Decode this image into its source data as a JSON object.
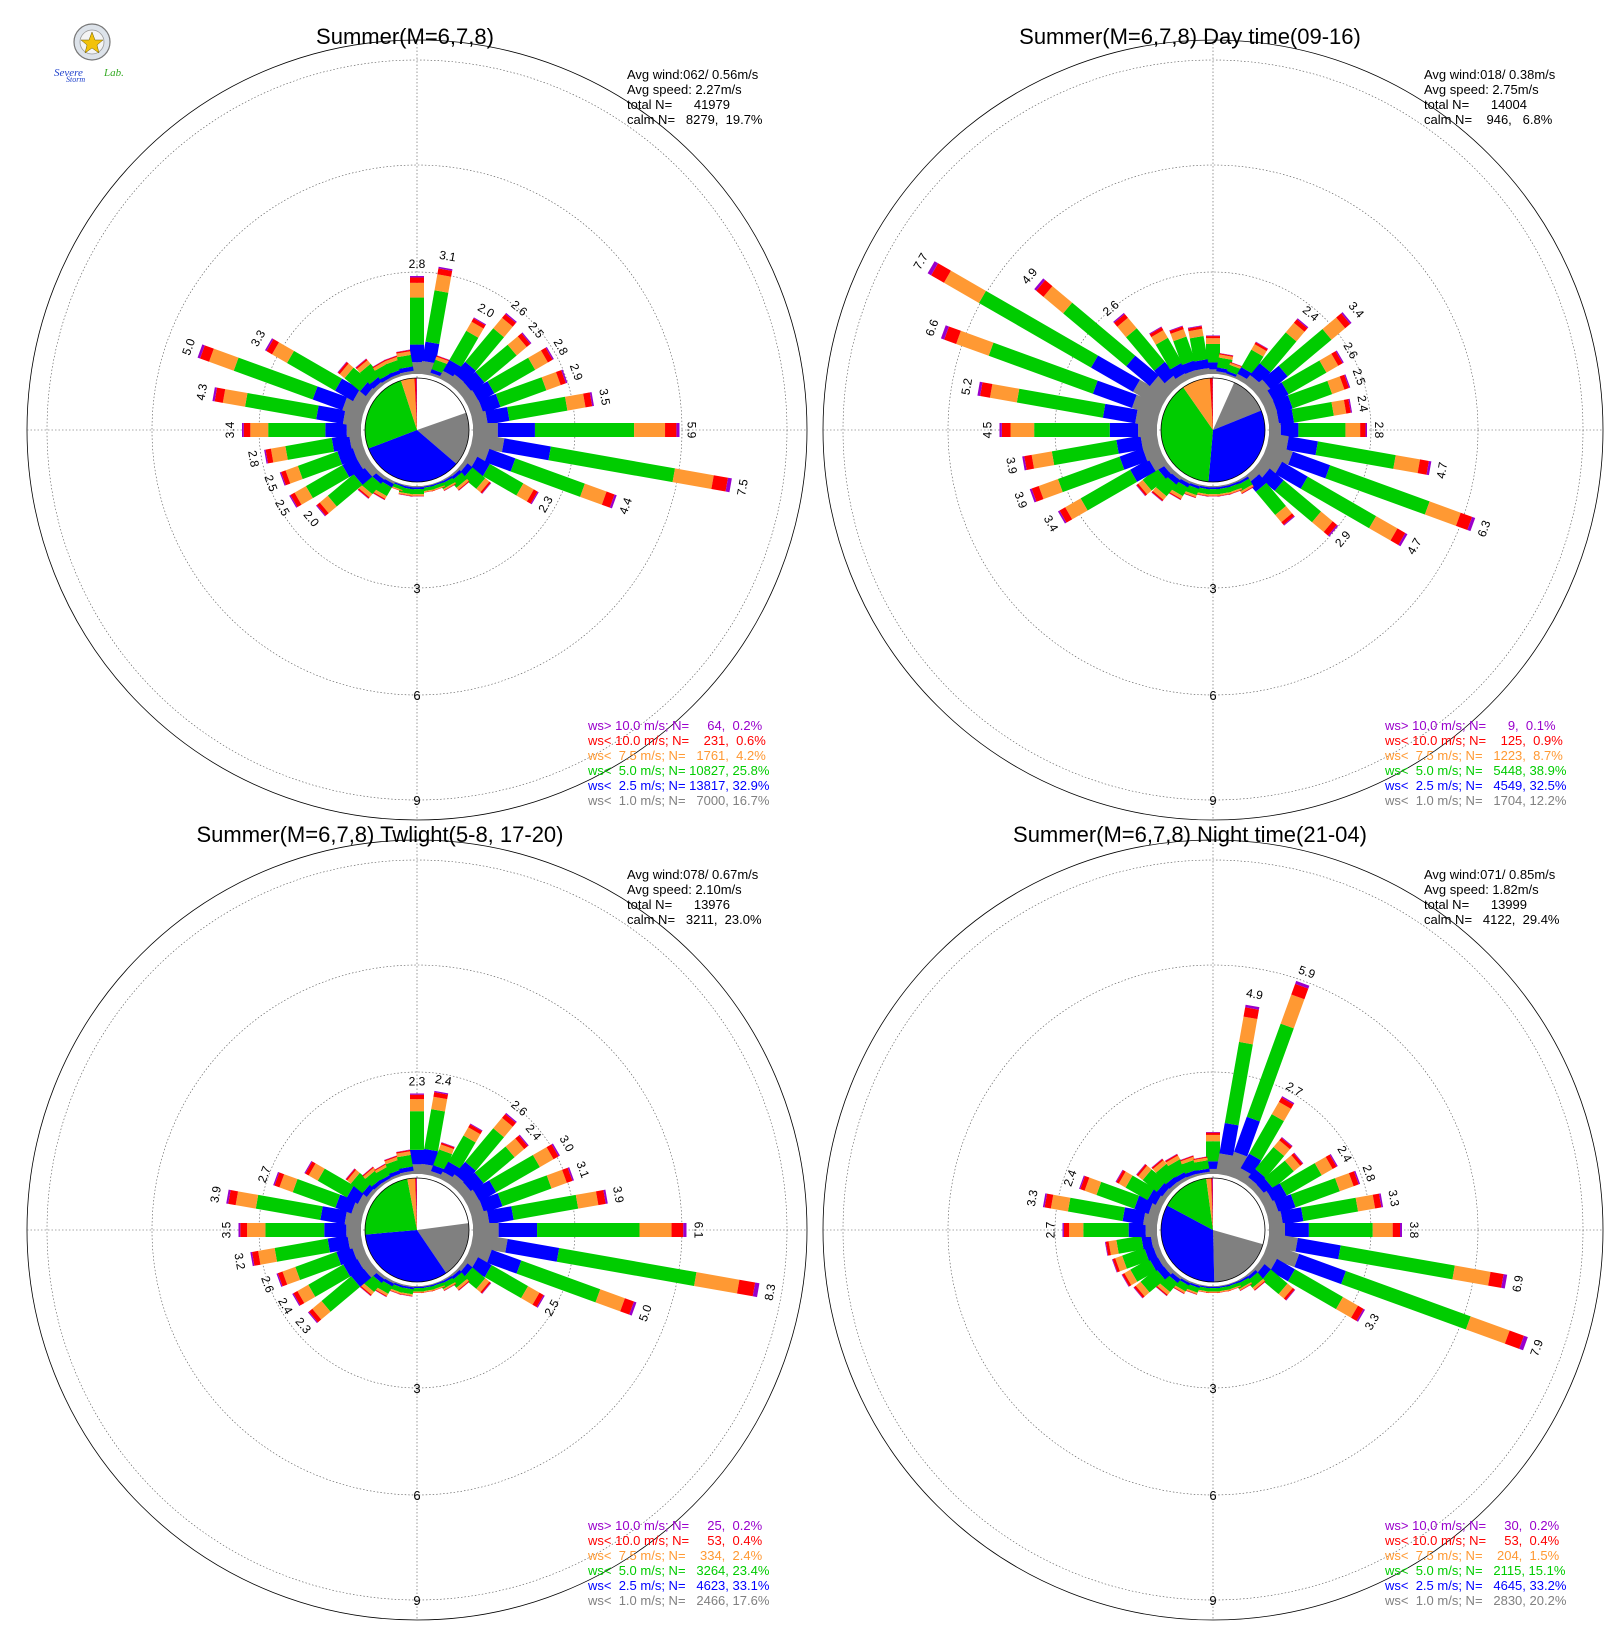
{
  "logo": {
    "text_severe": "Severe",
    "text_storm": "Storm",
    "text_lab": "Lab."
  },
  "colors": {
    "ws_gt_10": "#9900cc",
    "ws_lt_10": "#ff0000",
    "ws_lt_7_5": "#ff9933",
    "ws_lt_5": "#00cc00",
    "ws_lt_2_5": "#0000ff",
    "ws_lt_1": "#808080",
    "calm": "#ffffff"
  },
  "chart_data": [
    {
      "type": "windrose",
      "title": "Summer(M=6,7,8)",
      "stats": [
        "Avg wind:062/ 0.56m/s",
        "Avg speed: 2.27m/s",
        "total N=      41979",
        "calm N=   8279,  19.7%"
      ],
      "ring_labels": [
        "3",
        "6",
        "9"
      ],
      "legend": [
        {
          "text": "ws> 10.0 m/s; N=     64,  0.2%",
          "color": "#9900cc"
        },
        {
          "text": "ws< 10.0 m/s; N=    231,  0.6%",
          "color": "#ff0000"
        },
        {
          "text": "ws<  7.5 m/s; N=   1761,  4.2%",
          "color": "#ff9933"
        },
        {
          "text": "ws<  5.0 m/s; N= 10827, 25.8%",
          "color": "#00cc00"
        },
        {
          "text": "ws<  2.5 m/s; N= 13817, 32.9%",
          "color": "#0000ff"
        },
        {
          "text": "ws<  1.0 m/s; N=   7000, 16.7%",
          "color": "#808080"
        }
      ],
      "pie": [
        16.7,
        32.9,
        25.8,
        4.2,
        0.6,
        0.2
      ],
      "totals": [
        2.8,
        3.1,
        0.6,
        2.0,
        2.6,
        2.5,
        2.8,
        2.9,
        3.5,
        5.9,
        7.5,
        4.4,
        2.3,
        1.0,
        0.5,
        0.3,
        0.2,
        0.2,
        0.3,
        0.3,
        0.2,
        0.6,
        0.8,
        2.0,
        2.5,
        2.5,
        2.8,
        3.4,
        4.3,
        5.0,
        3.3,
        1.2,
        0.9,
        0.6,
        0.6,
        0.7
      ],
      "labeled": [
        0,
        1,
        3,
        4,
        5,
        6,
        7,
        8,
        9,
        10,
        11,
        12,
        23,
        24,
        25,
        26,
        27,
        28,
        29,
        30
      ]
    },
    {
      "type": "windrose",
      "title": "Summer(M=6,7,8) Day time(09-16)",
      "stats": [
        "Avg wind:018/ 0.38m/s",
        "Avg speed: 2.75m/s",
        "total N=      14004",
        "calm N=    946,   6.8%"
      ],
      "ring_labels": [
        "3",
        "6",
        "9"
      ],
      "legend": [
        {
          "text": "ws> 10.0 m/s; N=      9,  0.1%",
          "color": "#9900cc"
        },
        {
          "text": "ws< 10.0 m/s; N=    125,  0.9%",
          "color": "#ff0000"
        },
        {
          "text": "ws<  7.5 m/s; N=   1223,  8.7%",
          "color": "#ff9933"
        },
        {
          "text": "ws<  5.0 m/s; N=   5448, 38.9%",
          "color": "#00cc00"
        },
        {
          "text": "ws<  2.5 m/s; N=   4549, 32.5%",
          "color": "#0000ff"
        },
        {
          "text": "ws<  1.0 m/s; N=   1704, 12.2%",
          "color": "#808080"
        }
      ],
      "pie": [
        12.2,
        32.5,
        38.9,
        8.7,
        0.9,
        0.1
      ],
      "totals": [
        1.1,
        0.6,
        0.4,
        1.2,
        2.4,
        3.4,
        2.6,
        2.5,
        2.4,
        2.8,
        4.7,
        6.3,
        4.7,
        2.9,
        1.8,
        0.4,
        0.3,
        0.3,
        0.3,
        0.3,
        0.4,
        0.6,
        0.9,
        1.1,
        3.4,
        3.9,
        3.9,
        4.5,
        5.2,
        6.6,
        7.7,
        4.9,
        2.6,
        1.7,
        1.5,
        1.4
      ],
      "labeled": [
        4,
        5,
        6,
        7,
        8,
        9,
        10,
        11,
        12,
        13,
        24,
        25,
        26,
        27,
        28,
        29,
        30,
        31,
        32
      ]
    },
    {
      "type": "windrose",
      "title": "Summer(M=6,7,8) Twlight(5-8, 17-20)",
      "stats": [
        "Avg wind:078/ 0.67m/s",
        "Avg speed: 2.10m/s",
        "total N=      13976",
        "calm N=   3211,  23.0%"
      ],
      "ring_labels": [
        "3",
        "6",
        "9"
      ],
      "legend": [
        {
          "text": "ws> 10.0 m/s; N=     25,  0.2%",
          "color": "#9900cc"
        },
        {
          "text": "ws< 10.0 m/s; N=     53,  0.4%",
          "color": "#ff0000"
        },
        {
          "text": "ws<  7.5 m/s; N=    334,  2.4%",
          "color": "#ff9933"
        },
        {
          "text": "ws<  5.0 m/s; N=   3264, 23.4%",
          "color": "#00cc00"
        },
        {
          "text": "ws<  2.5 m/s; N=   4623, 33.1%",
          "color": "#0000ff"
        },
        {
          "text": "ws<  1.0 m/s; N=   2466, 17.6%",
          "color": "#808080"
        }
      ],
      "pie": [
        17.6,
        33.1,
        23.4,
        2.4,
        0.4,
        0.2
      ],
      "totals": [
        2.3,
        2.4,
        1.0,
        1.8,
        2.6,
        2.4,
        3.0,
        3.1,
        3.9,
        6.1,
        8.3,
        5.0,
        2.5,
        1.0,
        0.5,
        0.3,
        0.2,
        0.2,
        0.2,
        0.3,
        0.3,
        0.5,
        0.7,
        2.3,
        2.4,
        2.6,
        3.2,
        3.5,
        3.9,
        2.7,
        2.0,
        0.9,
        0.6,
        0.5,
        0.6,
        0.7
      ],
      "labeled": [
        0,
        1,
        4,
        5,
        6,
        7,
        8,
        9,
        10,
        11,
        12,
        23,
        24,
        25,
        26,
        27,
        28,
        29
      ]
    },
    {
      "type": "windrose",
      "title": "Summer(M=6,7,8) Night time(21-04)",
      "stats": [
        "Avg wind:071/ 0.85m/s",
        "Avg speed: 1.82m/s",
        "total N=      13999",
        "calm N=   4122,  29.4%"
      ],
      "ring_labels": [
        "3",
        "6",
        "9"
      ],
      "legend": [
        {
          "text": "ws> 10.0 m/s; N=     30,  0.2%",
          "color": "#9900cc"
        },
        {
          "text": "ws< 10.0 m/s; N=     53,  0.4%",
          "color": "#ff0000"
        },
        {
          "text": "ws<  7.5 m/s; N=    204,  1.5%",
          "color": "#ff9933"
        },
        {
          "text": "ws<  5.0 m/s; N=   2115, 15.1%",
          "color": "#00cc00"
        },
        {
          "text": "ws<  2.5 m/s; N=   4645, 33.2%",
          "color": "#0000ff"
        },
        {
          "text": "ws<  1.0 m/s; N=   2830, 20.2%",
          "color": "#808080"
        }
      ],
      "pie": [
        20.2,
        33.2,
        15.1,
        1.5,
        0.4,
        0.2
      ],
      "totals": [
        1.2,
        4.9,
        5.9,
        2.7,
        1.7,
        1.6,
        2.4,
        2.8,
        3.3,
        3.8,
        6.9,
        7.9,
        3.3,
        1.3,
        0.5,
        0.3,
        0.2,
        0.2,
        0.2,
        0.2,
        0.3,
        0.4,
        0.7,
        1.2,
        1.3,
        1.4,
        1.5,
        2.7,
        3.3,
        2.4,
        1.5,
        1.1,
        0.9,
        0.8,
        0.6,
        0.5
      ],
      "labeled": [
        1,
        2,
        3,
        6,
        7,
        8,
        9,
        10,
        11,
        12,
        27,
        28,
        29
      ]
    }
  ]
}
